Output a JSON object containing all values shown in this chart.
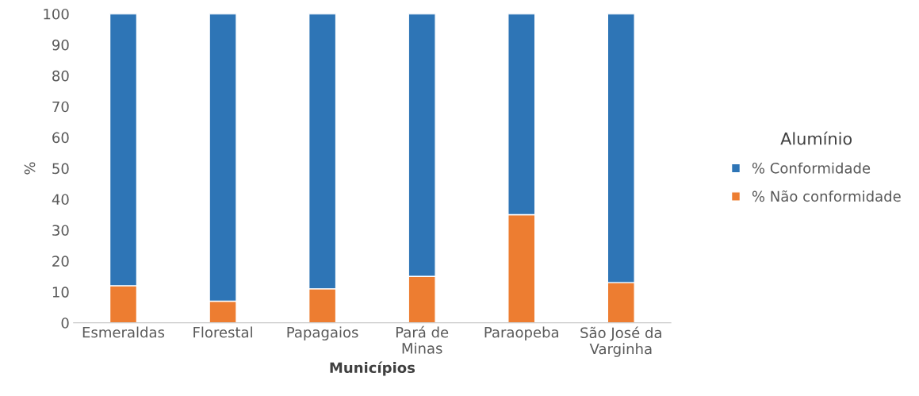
{
  "chart_data": {
    "type": "bar",
    "stacked": true,
    "xlabel": "Municípios",
    "ylabel": "%",
    "legend_title": "Alumínio",
    "legend": "right",
    "categories": [
      "Esmeraldas",
      "Florestal",
      "Papagaios",
      "Pará de\nMinas",
      "Paraopeba",
      "São José da\nVarginha"
    ],
    "series": [
      {
        "name": "% Não conformidade",
        "color": "#ed7d31",
        "values": [
          12,
          7,
          11,
          15,
          35,
          13
        ]
      },
      {
        "name": "% Conformidade",
        "color": "#2e75b6",
        "values": [
          88,
          93,
          89,
          85,
          65,
          87
        ]
      }
    ],
    "ylim": [
      0,
      100
    ],
    "yticks": [
      0,
      10,
      20,
      30,
      40,
      50,
      60,
      70,
      80,
      90,
      100
    ],
    "grid": false
  }
}
